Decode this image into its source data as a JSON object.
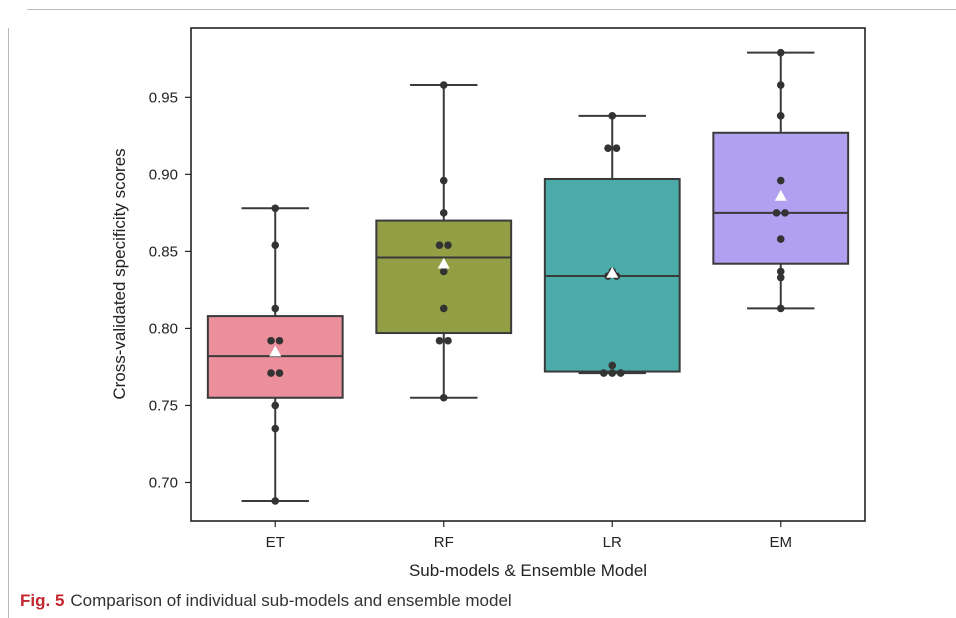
{
  "chart_data": {
    "type": "box",
    "xlabel": "Sub-models & Ensemble Model",
    "ylabel": "Cross-validated specificity scores",
    "ylim": [
      0.675,
      0.995
    ],
    "yticks": [
      "0.70",
      "0.75",
      "0.80",
      "0.85",
      "0.90",
      "0.95"
    ],
    "ytick_values": [
      0.7,
      0.75,
      0.8,
      0.85,
      0.9,
      0.95
    ],
    "categories": [
      "ET",
      "RF",
      "LR",
      "EM"
    ],
    "colors": [
      "#ea8f9b",
      "#939f45",
      "#4aaba8",
      "#b19fef"
    ],
    "boxes": [
      {
        "name": "ET",
        "whisker_low": 0.688,
        "q1": 0.755,
        "median": 0.782,
        "q3": 0.808,
        "whisker_high": 0.878,
        "mean": 0.785,
        "points": [
          0.878,
          0.854,
          0.813,
          0.792,
          0.792,
          0.771,
          0.771,
          0.75,
          0.735,
          0.688
        ]
      },
      {
        "name": "RF",
        "whisker_low": 0.755,
        "q1": 0.797,
        "median": 0.846,
        "q3": 0.87,
        "whisker_high": 0.958,
        "mean": 0.842,
        "points": [
          0.958,
          0.896,
          0.875,
          0.854,
          0.854,
          0.837,
          0.813,
          0.792,
          0.792,
          0.755
        ]
      },
      {
        "name": "LR",
        "whisker_low": 0.771,
        "q1": 0.772,
        "median": 0.834,
        "q3": 0.897,
        "whisker_high": 0.938,
        "mean": 0.836,
        "points": [
          0.938,
          0.917,
          0.917,
          0.837,
          0.834,
          0.834,
          0.776,
          0.771,
          0.771,
          0.771
        ]
      },
      {
        "name": "EM",
        "whisker_low": 0.813,
        "q1": 0.842,
        "median": 0.875,
        "q3": 0.927,
        "whisker_high": 0.979,
        "mean": 0.886,
        "points": [
          0.979,
          0.958,
          0.938,
          0.896,
          0.875,
          0.875,
          0.858,
          0.837,
          0.833,
          0.813
        ]
      }
    ]
  },
  "caption": {
    "label": "Fig. 5",
    "text": "Comparison of individual sub-models and ensemble model"
  }
}
